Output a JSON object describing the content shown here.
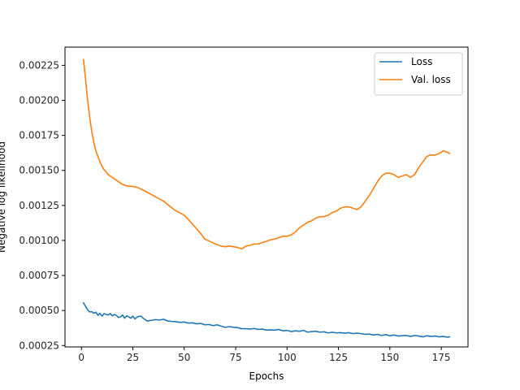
{
  "chart_data": {
    "type": "line",
    "title": "",
    "xlabel": "Epochs",
    "ylabel": "Negative log likelihood",
    "xlim": [
      -8,
      188
    ],
    "ylim": [
      0.00024,
      0.00238
    ],
    "xticks": [
      0,
      25,
      50,
      75,
      100,
      125,
      150,
      175
    ],
    "yticks": [
      0.00025,
      0.0005,
      0.00075,
      0.001,
      0.00125,
      0.0015,
      0.00175,
      0.002,
      0.00225
    ],
    "ytick_labels": [
      "0.00025",
      "0.00050",
      "0.00075",
      "0.00100",
      "0.00125",
      "0.00150",
      "0.00175",
      "0.00200",
      "0.00225"
    ],
    "grid": false,
    "legend_position": "top-right",
    "series": [
      {
        "name": "Loss",
        "color": "#1f77b4",
        "points": [
          [
            1,
            0.000555
          ],
          [
            2,
            0.00053
          ],
          [
            3,
            0.000505
          ],
          [
            4,
            0.00049
          ],
          [
            5,
            0.000492
          ],
          [
            6,
            0.00048
          ],
          [
            7,
            0.000488
          ],
          [
            8,
            0.000465
          ],
          [
            9,
            0.00048
          ],
          [
            10,
            0.00046
          ],
          [
            11,
            0.000478
          ],
          [
            12,
            0.000472
          ],
          [
            13,
            0.000468
          ],
          [
            14,
            0.000478
          ],
          [
            15,
            0.000462
          ],
          [
            16,
            0.000472
          ],
          [
            17,
            0.000465
          ],
          [
            18,
            0.00045
          ],
          [
            19,
            0.000455
          ],
          [
            20,
            0.000468
          ],
          [
            21,
            0.000445
          ],
          [
            22,
            0.000462
          ],
          [
            23,
            0.000455
          ],
          [
            24,
            0.000445
          ],
          [
            25,
            0.00046
          ],
          [
            26,
            0.00044
          ],
          [
            27,
            0.000452
          ],
          [
            28,
            0.000458
          ],
          [
            29,
            0.00046
          ],
          [
            30,
            0.000445
          ],
          [
            32,
            0.000425
          ],
          [
            34,
            0.00043
          ],
          [
            36,
            0.000435
          ],
          [
            38,
            0.000432
          ],
          [
            40,
            0.000438
          ],
          [
            42,
            0.000425
          ],
          [
            44,
            0.000422
          ],
          [
            46,
            0.00042
          ],
          [
            48,
            0.000415
          ],
          [
            50,
            0.000418
          ],
          [
            52,
            0.00041
          ],
          [
            54,
            0.000412
          ],
          [
            56,
            0.000405
          ],
          [
            58,
            0.000408
          ],
          [
            60,
            0.000398
          ],
          [
            62,
            0.0004
          ],
          [
            64,
            0.000392
          ],
          [
            66,
            0.000398
          ],
          [
            68,
            0.000388
          ],
          [
            70,
            0.00038
          ],
          [
            72,
            0.000385
          ],
          [
            74,
            0.00038
          ],
          [
            76,
            0.000378
          ],
          [
            78,
            0.00037
          ],
          [
            80,
            0.00037
          ],
          [
            82,
            0.000368
          ],
          [
            84,
            0.000372
          ],
          [
            86,
            0.000365
          ],
          [
            88,
            0.000368
          ],
          [
            90,
            0.00036
          ],
          [
            92,
            0.000362
          ],
          [
            94,
            0.00036
          ],
          [
            96,
            0.000365
          ],
          [
            98,
            0.000355
          ],
          [
            100,
            0.000358
          ],
          [
            102,
            0.00035
          ],
          [
            104,
            0.000355
          ],
          [
            106,
            0.000352
          ],
          [
            108,
            0.000358
          ],
          [
            110,
            0.000345
          ],
          [
            112,
            0.00035
          ],
          [
            114,
            0.000352
          ],
          [
            116,
            0.000345
          ],
          [
            118,
            0.000348
          ],
          [
            120,
            0.00034
          ],
          [
            122,
            0.000345
          ],
          [
            124,
            0.00034
          ],
          [
            126,
            0.000342
          ],
          [
            128,
            0.000338
          ],
          [
            130,
            0.000342
          ],
          [
            132,
            0.000335
          ],
          [
            134,
            0.000338
          ],
          [
            136,
            0.000335
          ],
          [
            138,
            0.00033
          ],
          [
            140,
            0.000332
          ],
          [
            142,
            0.000325
          ],
          [
            144,
            0.00033
          ],
          [
            146,
            0.000322
          ],
          [
            148,
            0.000328
          ],
          [
            150,
            0.00032
          ],
          [
            152,
            0.000325
          ],
          [
            154,
            0.000318
          ],
          [
            156,
            0.00032
          ],
          [
            158,
            0.000322
          ],
          [
            160,
            0.000315
          ],
          [
            162,
            0.000322
          ],
          [
            164,
            0.000318
          ],
          [
            166,
            0.000312
          ],
          [
            168,
            0.00032
          ],
          [
            170,
            0.000315
          ],
          [
            172,
            0.000318
          ],
          [
            174,
            0.000312
          ],
          [
            176,
            0.000315
          ],
          [
            178,
            0.00031
          ],
          [
            179,
            0.000312
          ]
        ]
      },
      {
        "name": "Val. loss",
        "color": "#ff7f0e",
        "points": [
          [
            1,
            0.00229
          ],
          [
            2,
            0.00215
          ],
          [
            3,
            0.002
          ],
          [
            4,
            0.00188
          ],
          [
            5,
            0.00178
          ],
          [
            6,
            0.0017
          ],
          [
            7,
            0.00164
          ],
          [
            8,
            0.0016
          ],
          [
            9,
            0.00156
          ],
          [
            10,
            0.00153
          ],
          [
            11,
            0.001505
          ],
          [
            12,
            0.00149
          ],
          [
            13,
            0.00147
          ],
          [
            14,
            0.00146
          ],
          [
            15,
            0.00145
          ],
          [
            16,
            0.00144
          ],
          [
            18,
            0.00142
          ],
          [
            20,
            0.0014
          ],
          [
            22,
            0.00139
          ],
          [
            25,
            0.001385
          ],
          [
            27,
            0.00138
          ],
          [
            30,
            0.00136
          ],
          [
            35,
            0.00132
          ],
          [
            40,
            0.00128
          ],
          [
            45,
            0.00122
          ],
          [
            50,
            0.00118
          ],
          [
            52,
            0.00115
          ],
          [
            55,
            0.0011
          ],
          [
            58,
            0.00105
          ],
          [
            60,
            0.00101
          ],
          [
            63,
            0.00099
          ],
          [
            66,
            0.00097
          ],
          [
            68,
            0.00096
          ],
          [
            70,
            0.000955
          ],
          [
            72,
            0.00096
          ],
          [
            74,
            0.000955
          ],
          [
            76,
            0.00095
          ],
          [
            78,
            0.00094
          ],
          [
            80,
            0.00096
          ],
          [
            82,
            0.000965
          ],
          [
            84,
            0.000975
          ],
          [
            86,
            0.000975
          ],
          [
            88,
            0.000985
          ],
          [
            90,
            0.000995
          ],
          [
            92,
            0.001005
          ],
          [
            94,
            0.00101
          ],
          [
            96,
            0.00102
          ],
          [
            98,
            0.00103
          ],
          [
            100,
            0.00103
          ],
          [
            102,
            0.00104
          ],
          [
            104,
            0.00106
          ],
          [
            106,
            0.00109
          ],
          [
            108,
            0.00111
          ],
          [
            110,
            0.00113
          ],
          [
            112,
            0.00114
          ],
          [
            114,
            0.00116
          ],
          [
            116,
            0.00117
          ],
          [
            118,
            0.00117
          ],
          [
            120,
            0.00118
          ],
          [
            122,
            0.0012
          ],
          [
            124,
            0.00121
          ],
          [
            126,
            0.00123
          ],
          [
            128,
            0.00124
          ],
          [
            130,
            0.00124
          ],
          [
            132,
            0.00123
          ],
          [
            134,
            0.00122
          ],
          [
            136,
            0.00124
          ],
          [
            138,
            0.00128
          ],
          [
            140,
            0.00132
          ],
          [
            142,
            0.00137
          ],
          [
            144,
            0.00142
          ],
          [
            146,
            0.00146
          ],
          [
            148,
            0.00148
          ],
          [
            150,
            0.00148
          ],
          [
            152,
            0.00147
          ],
          [
            154,
            0.00145
          ],
          [
            156,
            0.00146
          ],
          [
            158,
            0.00147
          ],
          [
            160,
            0.00145
          ],
          [
            162,
            0.00147
          ],
          [
            164,
            0.00152
          ],
          [
            166,
            0.00156
          ],
          [
            168,
            0.0016
          ],
          [
            170,
            0.00161
          ],
          [
            172,
            0.00161
          ],
          [
            174,
            0.00162
          ],
          [
            176,
            0.00164
          ],
          [
            178,
            0.00163
          ],
          [
            179,
            0.00162
          ]
        ]
      }
    ]
  }
}
